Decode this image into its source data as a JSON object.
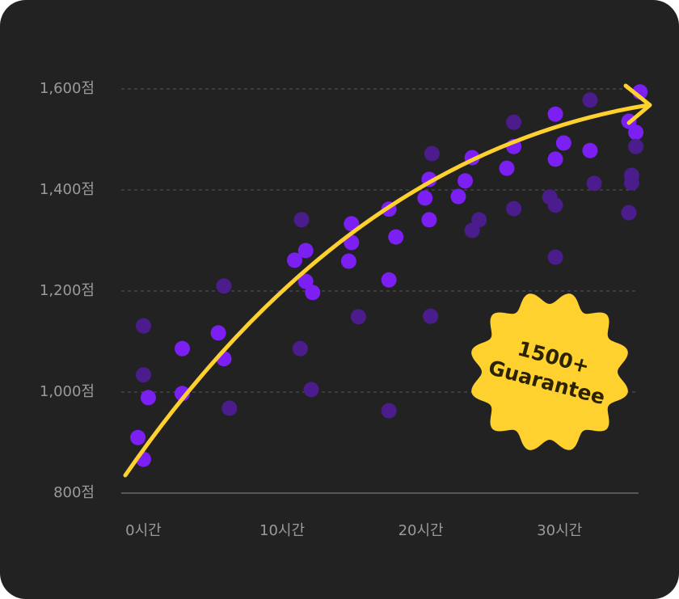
{
  "chart_data": {
    "type": "scatter",
    "xlim": [
      -1.6,
      35.7
    ],
    "ylim": [
      800,
      1600
    ],
    "xticks": [
      {
        "value": 0,
        "label": "0시간"
      },
      {
        "value": 10,
        "label": "10시간"
      },
      {
        "value": 20,
        "label": "20시간"
      },
      {
        "value": 30,
        "label": "30시간"
      }
    ],
    "yticks": [
      {
        "value": 800,
        "label": "800점"
      },
      {
        "value": 1000,
        "label": "1,000점"
      },
      {
        "value": 1200,
        "label": "1,200점"
      },
      {
        "value": 1400,
        "label": "1,400점"
      },
      {
        "value": 1600,
        "label": "1,600점"
      }
    ],
    "grid": true,
    "series": [
      {
        "color": "#7b1ff2",
        "x": [
          -0.4,
          0,
          0.35,
          2.8,
          2.8,
          5.4,
          5.8,
          10.9,
          11.7,
          11.7,
          12.2,
          15.0,
          15.0,
          14.8,
          17.7,
          18.2,
          17.7,
          20.3,
          20.6,
          20.6,
          22.7,
          23.2,
          23.7,
          26.2,
          26.7,
          29.7,
          30.3,
          29.7,
          32.2,
          35.8,
          35.0,
          35.5
        ],
        "values": [
          910,
          867,
          989,
          1086,
          997,
          1117,
          1066,
          1261,
          1280,
          1219,
          1197,
          1333,
          1296,
          1259,
          1362,
          1307,
          1222,
          1384,
          1421,
          1341,
          1387,
          1418,
          1464,
          1443,
          1486,
          1550,
          1493,
          1461,
          1478,
          1594,
          1536,
          1514
        ]
      },
      {
        "color": "#4b1d8c",
        "x": [
          0,
          0,
          5.8,
          6.2,
          11.4,
          11.3,
          12.1,
          15.5,
          17.7,
          20.8,
          20.7,
          24.2,
          23.7,
          26.7,
          26.7,
          29.3,
          29.7,
          29.7,
          32.2,
          32.5,
          35.2,
          35.2,
          35.5,
          35.0
        ],
        "values": [
          1131,
          1034,
          1210,
          968,
          1341,
          1086,
          1005,
          1149,
          963,
          1472,
          1150,
          1341,
          1320,
          1534,
          1363,
          1386,
          1370,
          1267,
          1578,
          1413,
          1429,
          1414,
          1486,
          1355
        ]
      }
    ],
    "annotation": [
      "1500+",
      "Guarantee"
    ]
  }
}
